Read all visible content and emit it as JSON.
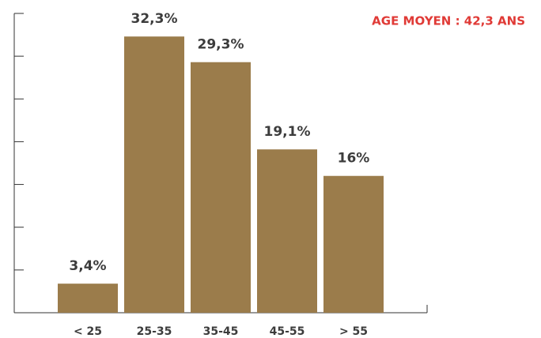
{
  "chart_data": {
    "type": "bar",
    "annotation": "AGE MOYEN : 42,3 ANS",
    "categories": [
      "< 25",
      "25-35",
      "35-45",
      "45-55",
      "> 55"
    ],
    "values": [
      3.4,
      32.3,
      29.3,
      19.1,
      16
    ],
    "value_labels": [
      "3,4%",
      "32,3%",
      "29,3%",
      "19,1%",
      "16%"
    ],
    "color": "#9b7c4b",
    "ylim": [
      0,
      35
    ],
    "yticks": [
      0,
      5,
      10,
      15,
      20,
      25,
      30,
      35
    ],
    "grid": false
  }
}
